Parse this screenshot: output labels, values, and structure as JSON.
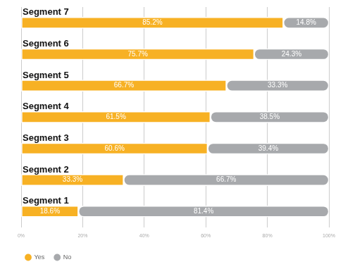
{
  "chart_data": {
    "type": "bar",
    "orientation": "horizontal",
    "stacked": true,
    "data_labels": true,
    "grid": true,
    "legend": "bottom-left",
    "categories": [
      "Segment 7",
      "Segment 6",
      "Segment 5",
      "Segment 4",
      "Segment 3",
      "Segment 2",
      "Segment 1"
    ],
    "series": [
      {
        "name": "Yes",
        "color": "#f7b124",
        "values": [
          85.2,
          75.7,
          66.7,
          61.5,
          60.6,
          33.3,
          18.6
        ],
        "value_labels": [
          "85.2%",
          "75.7%",
          "66.7%",
          "61.5%",
          "60.6%",
          "33.3%",
          "18.6%"
        ]
      },
      {
        "name": "No",
        "color": "#a7a9ac",
        "values": [
          14.8,
          24.3,
          33.3,
          38.5,
          39.4,
          66.7,
          81.4
        ],
        "value_labels": [
          "14.8%",
          "24.3%",
          "33.3%",
          "38.5%",
          "39.4%",
          "66.7%",
          "81.4%"
        ]
      }
    ],
    "xlim": [
      0,
      100
    ],
    "xticks": [
      {
        "value": 0,
        "label": "0%"
      },
      {
        "value": 20,
        "label": "20%"
      },
      {
        "value": 40,
        "label": "40%"
      },
      {
        "value": 60,
        "label": "60%"
      },
      {
        "value": 80,
        "label": "80%"
      },
      {
        "value": 100,
        "label": "100%"
      }
    ]
  }
}
